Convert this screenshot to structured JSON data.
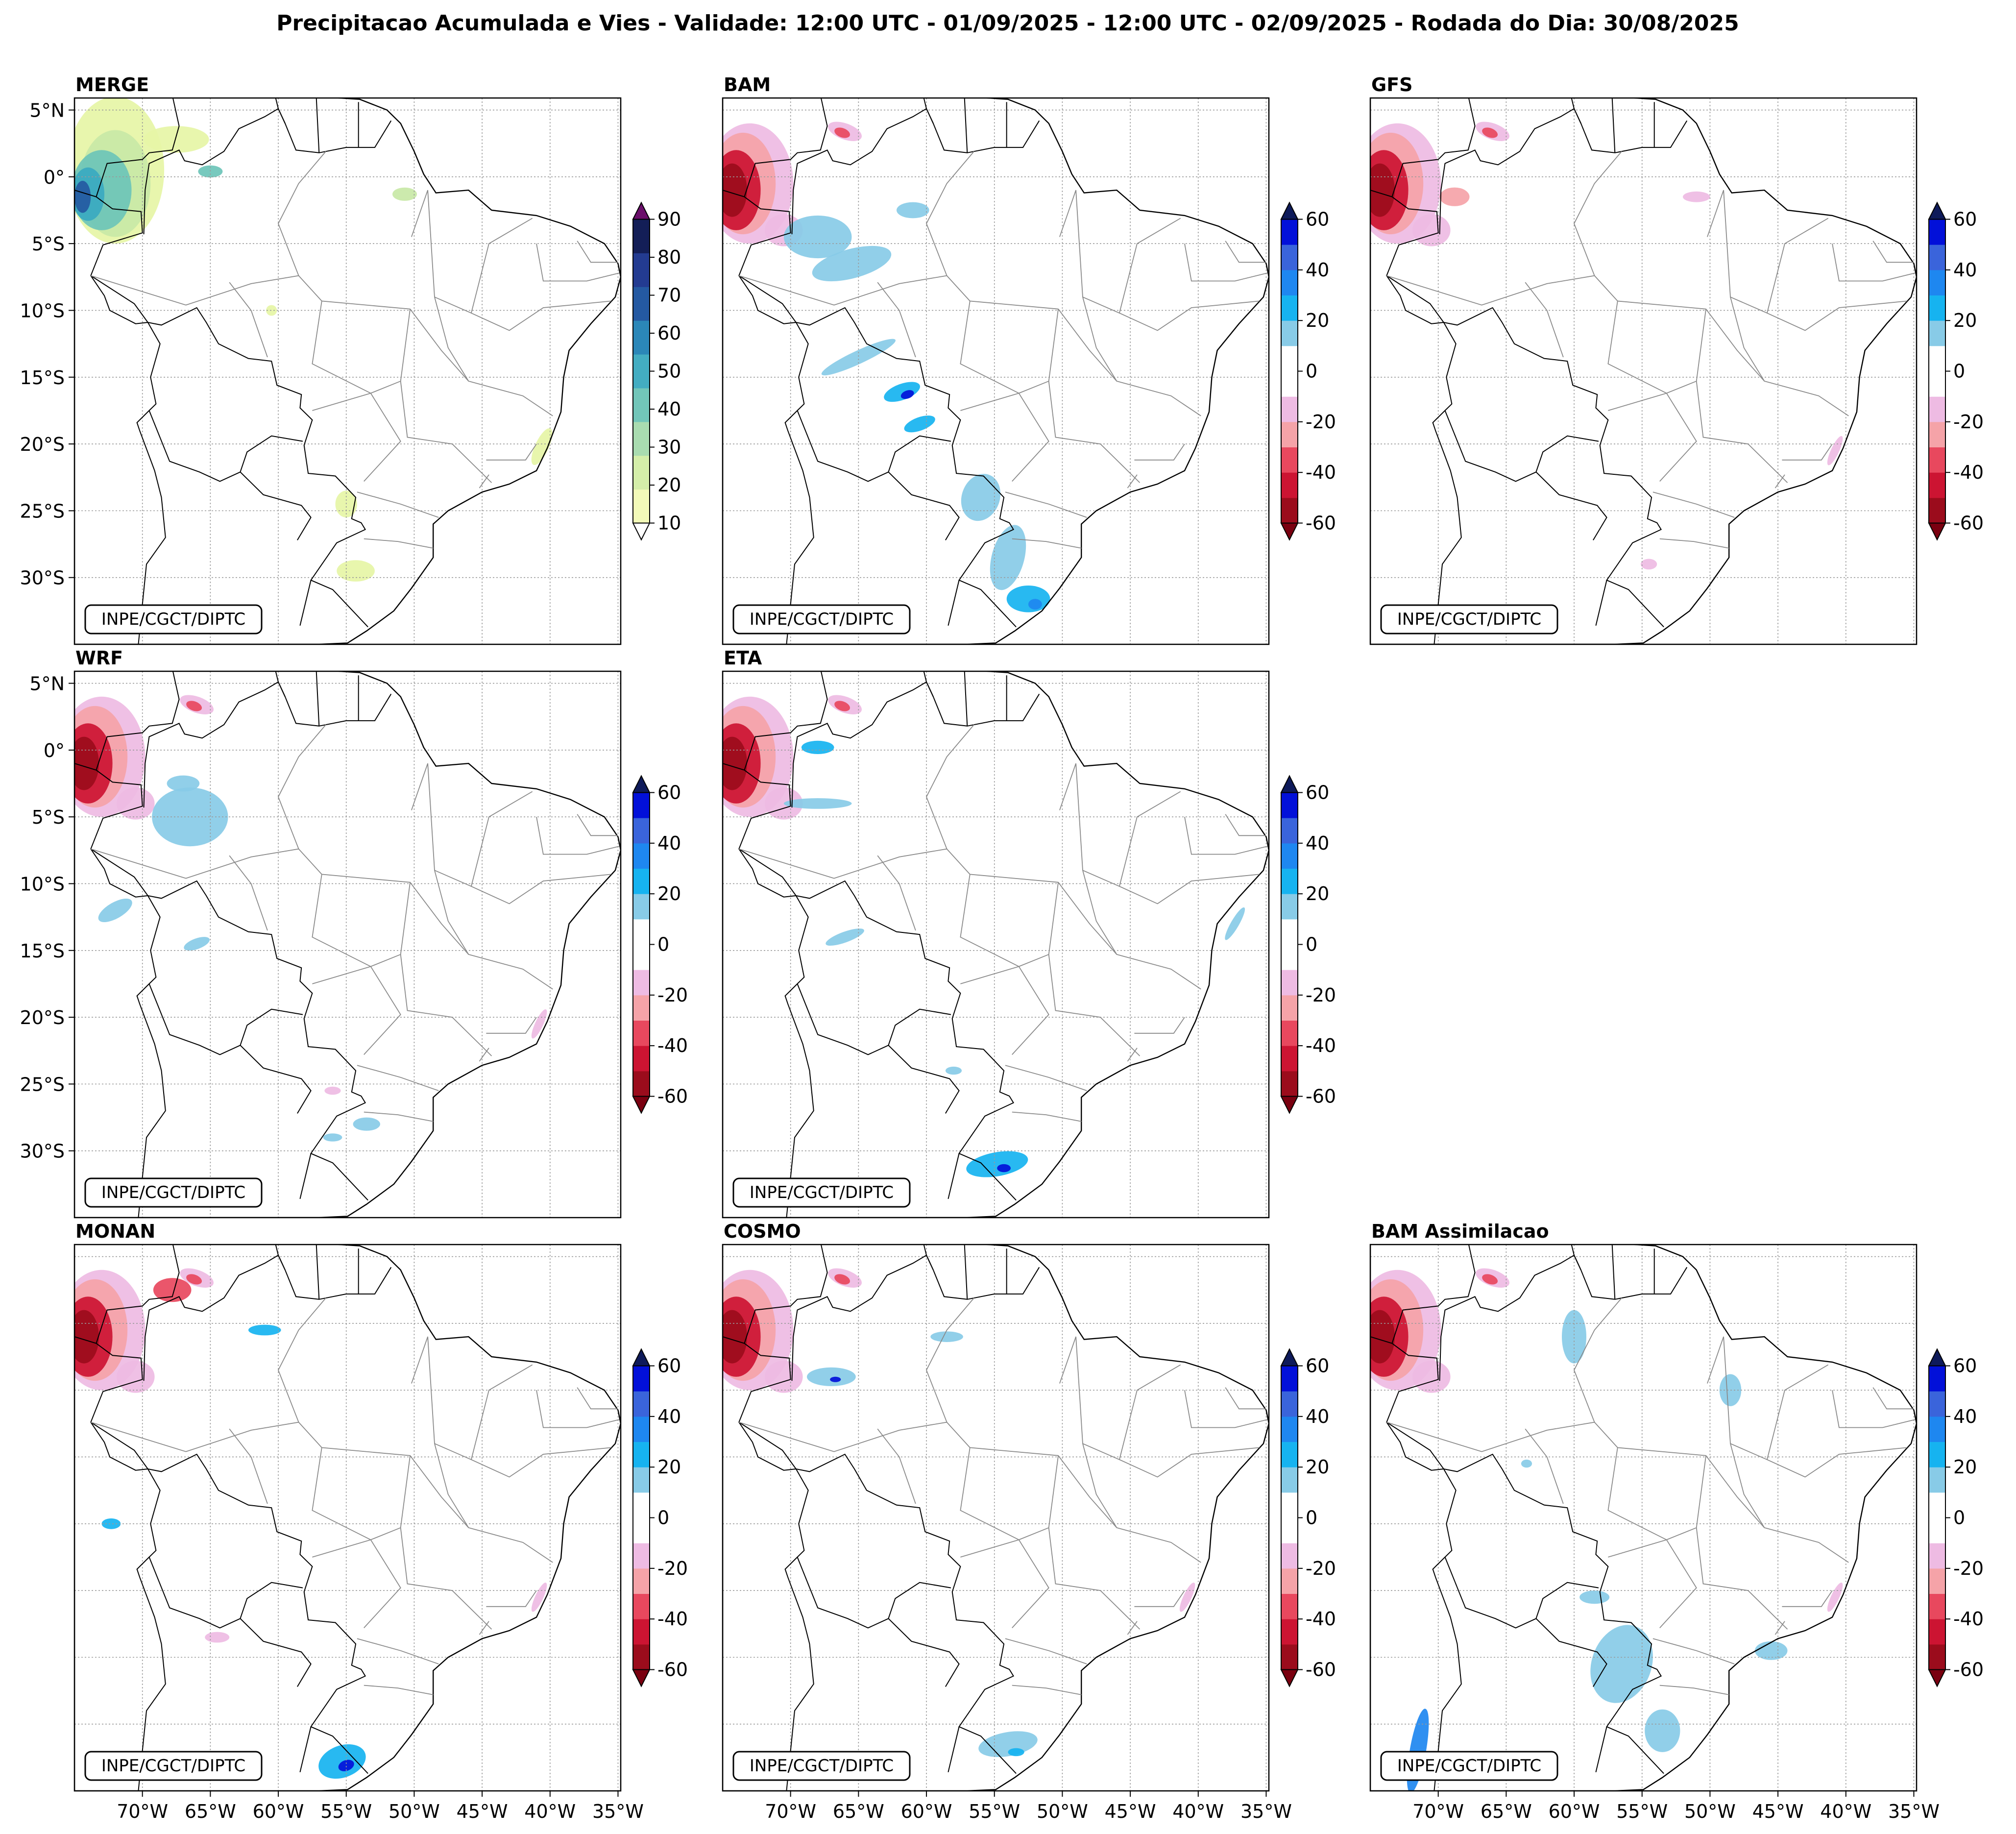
{
  "figure": {
    "title": "Precipitacao Acumulada e Vies - Validade: 12:00 UTC - 01/09/2025 - 12:00 UTC - 02/09/2025 - Rodada do Dia: 30/08/2025"
  },
  "credit": "INPE/CGCT/DIPTC",
  "lat_ticks": [
    "5°N",
    "0°",
    "5°S",
    "10°S",
    "15°S",
    "20°S",
    "25°S",
    "30°S"
  ],
  "lon_ticks": [
    "70°W",
    "65°W",
    "60°W",
    "55°W",
    "50°W",
    "45°W",
    "40°W",
    "35°W"
  ],
  "panels": [
    {
      "title": "MERGE",
      "variable": "precipitation",
      "show_lat": true,
      "show_lon": false
    },
    {
      "title": "BAM",
      "variable": "bias",
      "show_lat": false,
      "show_lon": false
    },
    {
      "title": "GFS",
      "variable": "bias",
      "show_lat": false,
      "show_lon": false
    },
    {
      "title": "WRF",
      "variable": "bias",
      "show_lat": true,
      "show_lon": false
    },
    {
      "title": "ETA",
      "variable": "bias",
      "show_lat": false,
      "show_lon": false
    },
    {
      "title": "MONAN",
      "variable": "bias",
      "show_lat": false,
      "show_lon": true
    },
    {
      "title": "COSMO",
      "variable": "bias",
      "show_lat": false,
      "show_lon": true
    },
    {
      "title": "BAM Assimilacao",
      "variable": "bias",
      "show_lat": false,
      "show_lon": true
    }
  ],
  "colorbars": {
    "precipitation": {
      "tick_labels": [
        "10",
        "20",
        "30",
        "40",
        "50",
        "60",
        "70",
        "80",
        "90"
      ],
      "colors": [
        "#f3fab8",
        "#d4eea9",
        "#a9dcb0",
        "#72c6b9",
        "#43adc2",
        "#2b87b8",
        "#2459a2",
        "#233b91",
        "#131e57"
      ],
      "under_color": "#ffffff",
      "over_color": "#6b0f6b"
    },
    "bias": {
      "tick_labels": [
        "-60",
        "-40",
        "-20",
        "0",
        "20",
        "40",
        "60"
      ],
      "colors": [
        "#9b0c1c",
        "#cc1432",
        "#e8485e",
        "#f5a3a8",
        "#eebbe3",
        "#ffffff",
        "#ffffff",
        "#88cbe7",
        "#16b3f0",
        "#1e87f0",
        "#3a64db",
        "#0210d9"
      ],
      "under_color": "#7a0010",
      "over_color": "#0e1a5a"
    }
  },
  "palette": {
    "frame": "#000000",
    "grid": "#9a9a9a",
    "border_country": "#000000",
    "border_state": "#8a8a8a"
  }
}
